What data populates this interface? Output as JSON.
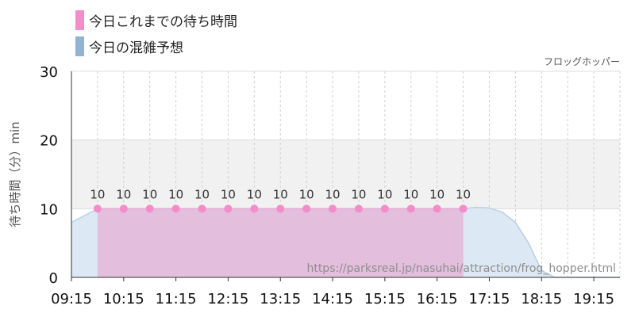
{
  "legend": [
    {
      "label": "今日これまでの待ち時間",
      "color": "#f48cc9"
    },
    {
      "label": "今日の混雑予想",
      "color": "#92b3d3"
    }
  ],
  "attraction_name": "フロッグホッパー",
  "watermark": "https://parksreal.jp/nasuhai/attraction/frog_hopper.html",
  "chart_data": {
    "type": "area",
    "title": "",
    "ylabel": "待ち時間（分）min",
    "ylim": [
      0,
      30
    ],
    "yticks": [
      0,
      10,
      20,
      30
    ],
    "xlim": [
      "09:15",
      "19:45"
    ],
    "xticks": [
      "09:15",
      "10:15",
      "11:15",
      "12:15",
      "13:15",
      "14:15",
      "15:15",
      "16:15",
      "17:15",
      "18:15",
      "19:15"
    ],
    "minor_grid_step_minutes": 30,
    "shaded_band": [
      10,
      20
    ],
    "grid": true,
    "series": [
      {
        "name": "今日これまでの待ち時間",
        "color": "#f48cc9",
        "fill": "#e3bedd",
        "show_labels": true,
        "points": [
          [
            "09:45",
            10
          ],
          [
            "10:15",
            10
          ],
          [
            "10:45",
            10
          ],
          [
            "11:15",
            10
          ],
          [
            "11:45",
            10
          ],
          [
            "12:15",
            10
          ],
          [
            "12:45",
            10
          ],
          [
            "13:15",
            10
          ],
          [
            "13:45",
            10
          ],
          [
            "14:15",
            10
          ],
          [
            "14:45",
            10
          ],
          [
            "15:15",
            10
          ],
          [
            "15:45",
            10
          ],
          [
            "16:15",
            10
          ],
          [
            "16:45",
            10
          ]
        ]
      },
      {
        "name": "今日の混雑予想",
        "color": "#92b3d3",
        "fill": "#dce8f3",
        "points": [
          [
            "09:15",
            8
          ],
          [
            "09:30",
            9
          ],
          [
            "09:45",
            10
          ],
          [
            "16:45",
            10
          ],
          [
            "17:00",
            10.2
          ],
          [
            "17:15",
            10.1
          ],
          [
            "17:30",
            9.5
          ],
          [
            "17:45",
            8
          ],
          [
            "18:00",
            5
          ],
          [
            "18:15",
            1
          ],
          [
            "18:30",
            0
          ],
          [
            "19:45",
            0
          ]
        ]
      }
    ]
  }
}
